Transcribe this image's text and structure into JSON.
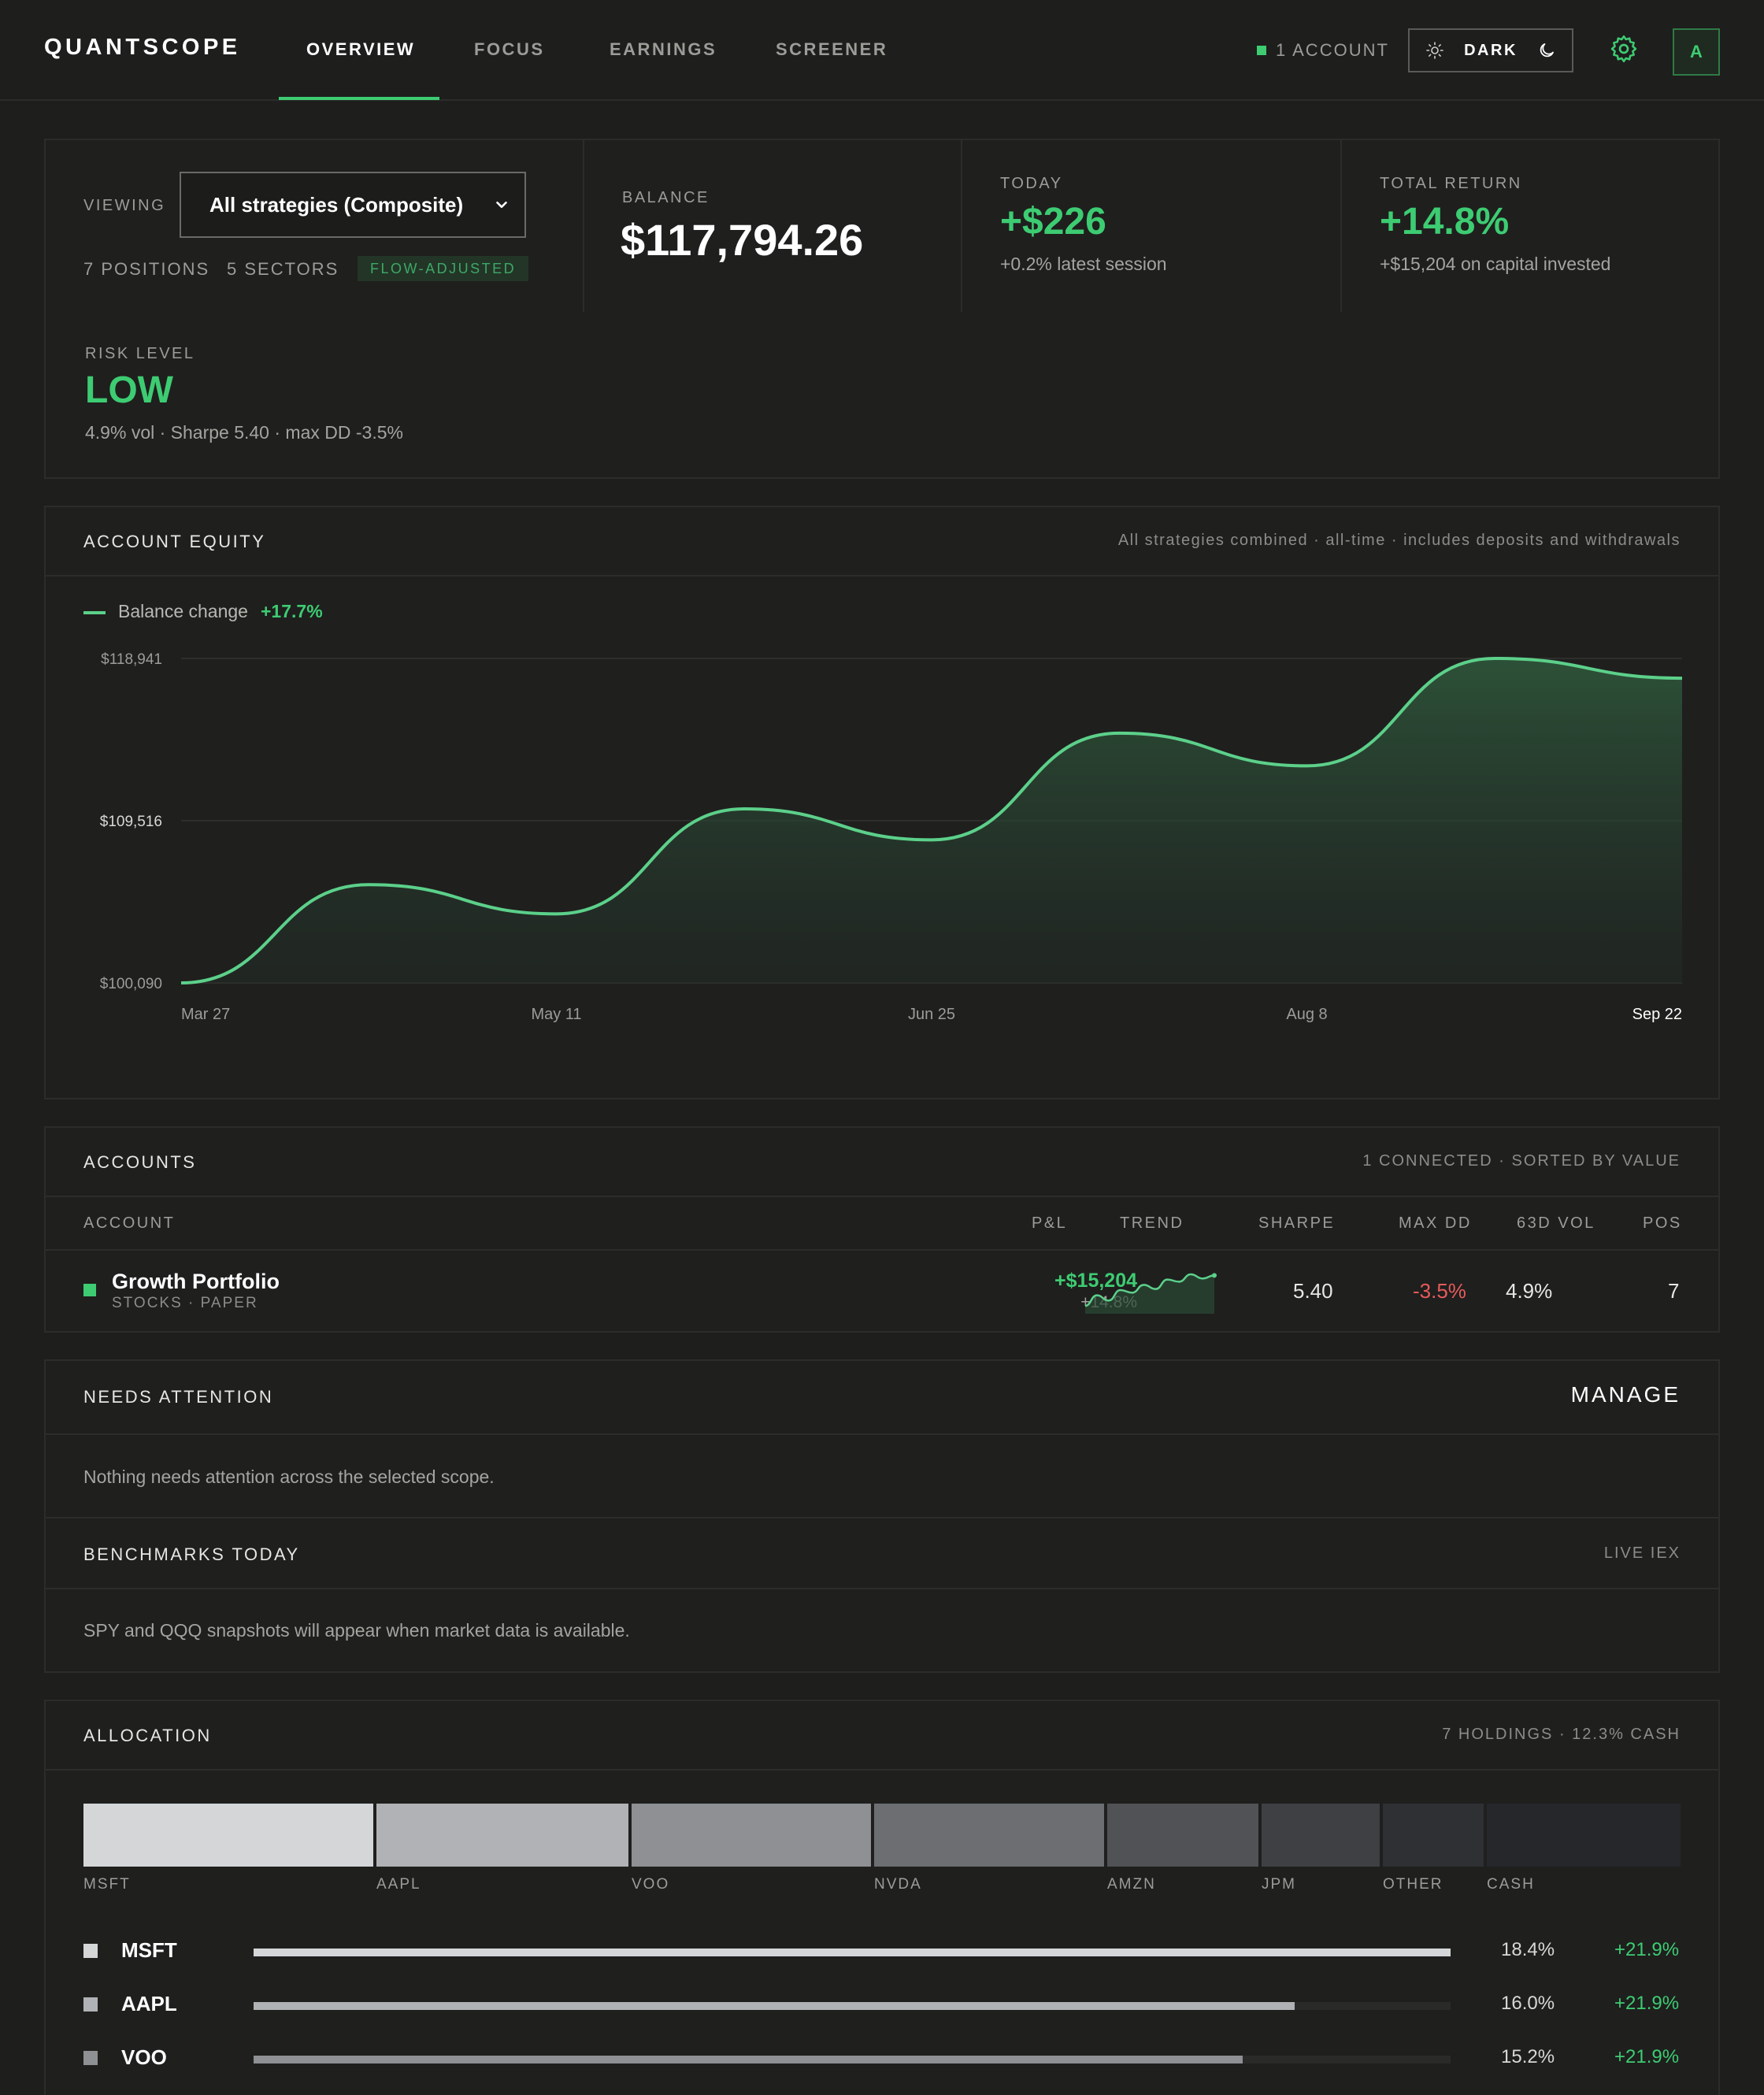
{
  "app": {
    "name": "QUANTSCOPE"
  },
  "nav": {
    "tabs": [
      {
        "label": "OVERVIEW",
        "active": true
      },
      {
        "label": "FOCUS",
        "active": false
      },
      {
        "label": "EARNINGS",
        "active": false
      },
      {
        "label": "SCREENER",
        "active": false
      }
    ]
  },
  "header": {
    "account_count": "1 ACCOUNT",
    "theme_label": "DARK",
    "avatar_initial": "A"
  },
  "summary": {
    "viewing_label": "VIEWING",
    "scope_value": "All strategies (Composite)",
    "positions": "7 POSITIONS",
    "sectors": "5 SECTORS",
    "badge": "FLOW-ADJUSTED",
    "balance_label": "BALANCE",
    "balance_value": "$117,794.26",
    "today_label": "TODAY",
    "today_value": "+$226",
    "today_sub": "+0.2% latest session",
    "total_return_label": "TOTAL RETURN",
    "total_return_value": "+14.8%",
    "total_return_sub": "+$15,204 on capital invested",
    "risk_label": "RISK LEVEL",
    "risk_value": "LOW",
    "risk_sub": "4.9% vol · Sharpe 5.40 · max DD -3.5%"
  },
  "equity": {
    "title": "ACCOUNT EQUITY",
    "meta": "All strategies combined · all-time · includes deposits and withdrawals",
    "legend_label": "Balance change",
    "legend_value": "+17.7%"
  },
  "chart_data": {
    "type": "area",
    "x": [
      "Mar 27",
      "Apr 19",
      "May 11",
      "Jun 3",
      "Jun 25",
      "Jul 17",
      "Aug 8",
      "Aug 31",
      "Sep 22"
    ],
    "x_tick_labels": [
      "Mar 27",
      "May 11",
      "Jun 25",
      "Aug 8",
      "Sep 22"
    ],
    "series": [
      {
        "name": "Balance change",
        "values": [
          100090,
          105800,
          104100,
          110200,
          108400,
          114600,
          112700,
          118941,
          117794
        ]
      }
    ],
    "ylim": [
      100090,
      118941
    ],
    "y_tick_labels": [
      "$118,941",
      "$109,516",
      "$100,090"
    ],
    "line_color": "#5cd08a",
    "grid": true,
    "legend": "top-left"
  },
  "accounts": {
    "title": "ACCOUNTS",
    "meta": "1 CONNECTED · SORTED BY VALUE",
    "columns": [
      "ACCOUNT",
      "P&L",
      "TREND",
      "SHARPE",
      "MAX DD",
      "63D VOL",
      "POS"
    ],
    "rows": [
      {
        "name": "Growth Portfolio",
        "sub": "STOCKS · PAPER",
        "pnl": "+$15,204",
        "pnl_pct": "+14.8%",
        "sharpe": "5.40",
        "max_dd": "-3.5%",
        "vol": "4.9%",
        "pos": "7",
        "trend": [
          0,
          2,
          1,
          3,
          2.5,
          4,
          3.2,
          5,
          4.6,
          6,
          5.2,
          5.8
        ]
      }
    ]
  },
  "attention": {
    "title": "NEEDS ATTENTION",
    "manage_label": "MANAGE",
    "empty_text": "Nothing needs attention across the selected scope."
  },
  "benchmarks": {
    "title": "BENCHMARKS TODAY",
    "meta": "LIVE IEX",
    "empty_text": "SPY and QQQ snapshots will appear when market data is available."
  },
  "allocation": {
    "title": "ALLOCATION",
    "meta": "7 HOLDINGS · 12.3% CASH",
    "segments": [
      {
        "label": "MSFT",
        "weight": 18.4,
        "color": "#d4d6d8"
      },
      {
        "label": "AAPL",
        "weight": 16.0,
        "color": "#b0b2b5"
      },
      {
        "label": "VOO",
        "weight": 15.2,
        "color": "#8e9093"
      },
      {
        "label": "NVDA",
        "weight": 14.6,
        "color": "#6c6e72"
      },
      {
        "label": "AMZN",
        "weight": 9.6,
        "color": "#505255"
      },
      {
        "label": "JPM",
        "weight": 7.5,
        "color": "#3e4043"
      },
      {
        "label": "OTHER",
        "weight": 6.4,
        "color": "#2e3034"
      },
      {
        "label": "CASH",
        "weight": 12.3,
        "color": "#25272b"
      }
    ],
    "holdings": [
      {
        "name": "MSFT",
        "pct": "18.4%",
        "ret": "+21.9%",
        "fill": 1.0,
        "color": "#d4d6d8"
      },
      {
        "name": "AAPL",
        "pct": "16.0%",
        "ret": "+21.9%",
        "fill": 0.87,
        "color": "#b0b2b5"
      },
      {
        "name": "VOO",
        "pct": "15.2%",
        "ret": "+21.9%",
        "fill": 0.826,
        "color": "#8e9093"
      }
    ]
  }
}
